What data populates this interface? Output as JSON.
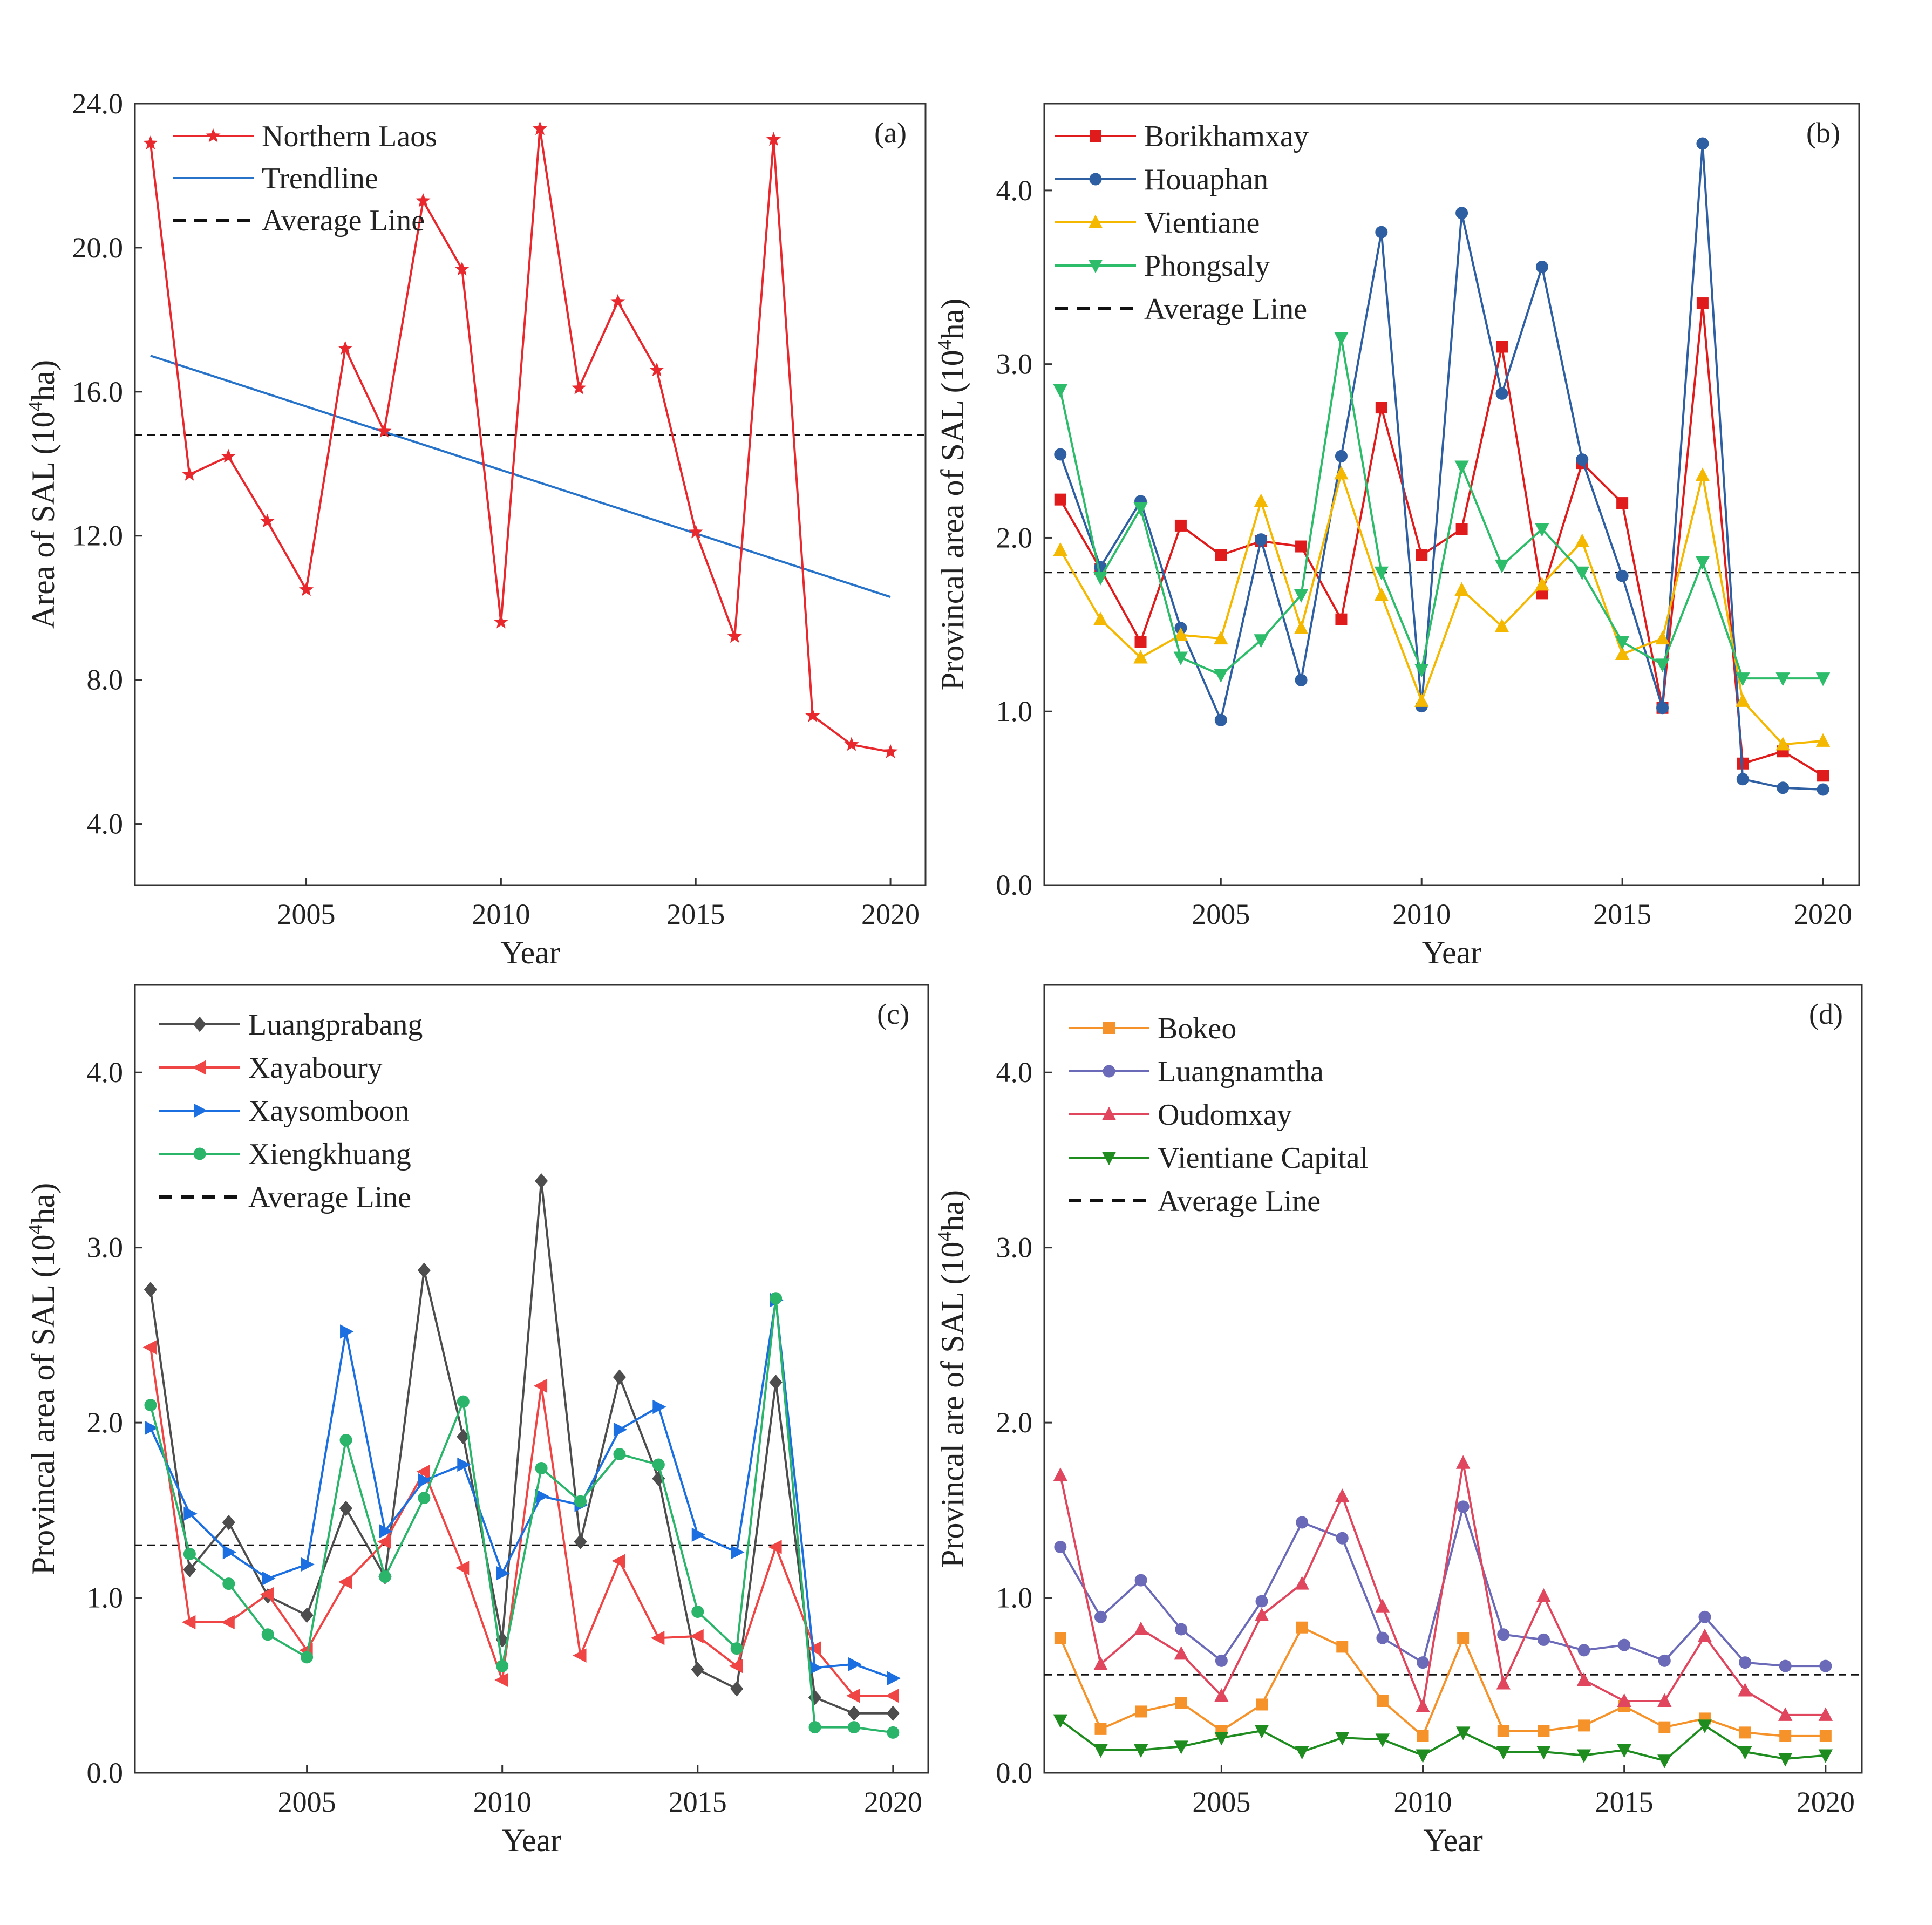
{
  "chart_data": [
    {
      "type": "line",
      "panel_label": "(a)",
      "xlabel": "Year",
      "ylabel": "Area of SAL (10",
      "ylabel_sup": "4",
      "ylabel_suffix": "ha)",
      "xlim": [
        2000.6,
        2020.9
      ],
      "ylim": [
        2.3,
        24.0
      ],
      "xticks": [
        2005,
        2010,
        2015,
        2020
      ],
      "yticks": [
        4.0,
        8.0,
        12.0,
        16.0,
        20.0,
        24.0
      ],
      "x": [
        2001,
        2002,
        2003,
        2004,
        2005,
        2006,
        2007,
        2008,
        2009,
        2010,
        2011,
        2012,
        2013,
        2014,
        2015,
        2016,
        2017,
        2018,
        2019,
        2020
      ],
      "series": [
        {
          "name": "Northern Laos",
          "color": "#e8282d",
          "marker": "star",
          "values": [
            22.9,
            13.7,
            14.2,
            12.4,
            10.5,
            17.2,
            14.9,
            21.3,
            19.4,
            9.6,
            23.3,
            16.1,
            18.5,
            16.6,
            12.1,
            9.2,
            23.0,
            7.0,
            6.2,
            6.0
          ]
        }
      ],
      "trendline": {
        "name": "Trendline",
        "color": "#2673c9",
        "start": [
          2001,
          17.0
        ],
        "end": [
          2020,
          10.3
        ]
      },
      "average": {
        "name": "Average Line",
        "value": 14.8
      }
    },
    {
      "type": "line",
      "panel_label": "(b)",
      "xlabel": "Year",
      "ylabel": "Provincal area of SAL (10",
      "ylabel_sup": "4",
      "ylabel_suffix": "ha)",
      "xlim": [
        2000.6,
        2020.9
      ],
      "ylim": [
        0.0,
        4.5
      ],
      "xticks": [
        2005,
        2010,
        2015,
        2020
      ],
      "yticks": [
        0.0,
        1.0,
        2.0,
        3.0,
        4.0
      ],
      "x": [
        2001,
        2002,
        2003,
        2004,
        2005,
        2006,
        2007,
        2008,
        2009,
        2010,
        2011,
        2012,
        2013,
        2014,
        2015,
        2016,
        2017,
        2018,
        2019,
        2020
      ],
      "series": [
        {
          "name": "Borikhamxay",
          "color": "#e01b1b",
          "marker": "square",
          "values": [
            2.22,
            1.82,
            1.4,
            2.07,
            1.9,
            1.98,
            1.95,
            1.53,
            2.75,
            1.9,
            2.05,
            3.1,
            1.68,
            2.43,
            2.2,
            1.02,
            3.35,
            0.7,
            0.77,
            0.63
          ]
        },
        {
          "name": "Houaphan",
          "color": "#2f5fa3",
          "marker": "circle",
          "values": [
            2.48,
            1.83,
            2.21,
            1.48,
            0.95,
            1.99,
            1.18,
            2.47,
            3.76,
            1.03,
            3.87,
            2.83,
            3.56,
            2.45,
            1.78,
            1.02,
            4.27,
            0.61,
            0.56,
            0.55
          ]
        },
        {
          "name": "Vientiane",
          "color": "#f5b800",
          "marker": "triangle",
          "values": [
            1.93,
            1.53,
            1.31,
            1.44,
            1.42,
            2.21,
            1.48,
            2.37,
            1.67,
            1.06,
            1.7,
            1.49,
            1.73,
            1.98,
            1.33,
            1.42,
            2.36,
            1.06,
            0.81,
            0.83
          ]
        },
        {
          "name": "Phongsaly",
          "color": "#2dbc6a",
          "marker": "triangle-down",
          "values": [
            2.85,
            1.77,
            2.17,
            1.31,
            1.21,
            1.41,
            1.67,
            3.15,
            1.8,
            1.24,
            2.41,
            1.84,
            2.05,
            1.8,
            1.4,
            1.27,
            1.86,
            1.19,
            1.19,
            1.19
          ]
        }
      ],
      "average": {
        "name": "Average Line",
        "value": 1.8
      }
    },
    {
      "type": "line",
      "panel_label": "(c)",
      "xlabel": "Year",
      "ylabel": "Provincal area of SAL (10",
      "ylabel_sup": "4",
      "ylabel_suffix": "ha)",
      "xlim": [
        2000.6,
        2020.9
      ],
      "ylim": [
        0.0,
        4.5
      ],
      "xticks": [
        2005,
        2010,
        2015,
        2020
      ],
      "yticks": [
        0.0,
        1.0,
        2.0,
        3.0,
        4.0
      ],
      "x": [
        2001,
        2002,
        2003,
        2004,
        2005,
        2006,
        2007,
        2008,
        2009,
        2010,
        2011,
        2012,
        2013,
        2014,
        2015,
        2016,
        2017,
        2018,
        2019,
        2020
      ],
      "series": [
        {
          "name": "Luangprabang",
          "color": "#4d4d4d",
          "marker": "diamond",
          "values": [
            2.76,
            1.16,
            1.43,
            1.01,
            0.9,
            1.51,
            1.12,
            2.87,
            1.92,
            0.76,
            3.38,
            1.32,
            2.26,
            1.68,
            0.59,
            0.48,
            2.23,
            0.43,
            0.34,
            0.34
          ]
        },
        {
          "name": "Xayaboury",
          "color": "#f04545",
          "marker": "triangle-left",
          "values": [
            2.43,
            0.86,
            0.86,
            1.02,
            0.7,
            1.09,
            1.32,
            1.72,
            1.17,
            0.53,
            2.21,
            0.67,
            1.21,
            0.77,
            0.78,
            0.61,
            1.29,
            0.71,
            0.44,
            0.44
          ]
        },
        {
          "name": "Xaysomboon",
          "color": "#1c6fe0",
          "marker": "triangle-right",
          "values": [
            1.97,
            1.48,
            1.26,
            1.11,
            1.19,
            2.52,
            1.38,
            1.67,
            1.76,
            1.14,
            1.58,
            1.53,
            1.96,
            2.09,
            1.36,
            1.26,
            2.7,
            0.6,
            0.62,
            0.54
          ]
        },
        {
          "name": "Xiengkhuang",
          "color": "#2bb56b",
          "marker": "circle",
          "values": [
            2.1,
            1.25,
            1.08,
            0.79,
            0.66,
            1.9,
            1.12,
            1.57,
            2.12,
            0.61,
            1.74,
            1.55,
            1.82,
            1.76,
            0.92,
            0.71,
            2.71,
            0.26,
            0.26,
            0.23
          ]
        }
      ],
      "average": {
        "name": "Average Line",
        "value": 1.3
      }
    },
    {
      "type": "line",
      "panel_label": "(d)",
      "xlabel": "Year",
      "ylabel": "Provincal are of SAL (10",
      "ylabel_sup": "4",
      "ylabel_suffix": "ha)",
      "xlim": [
        2000.6,
        2020.9
      ],
      "ylim": [
        0.0,
        4.5
      ],
      "xticks": [
        2005,
        2010,
        2015,
        2020
      ],
      "yticks": [
        0.0,
        1.0,
        2.0,
        3.0,
        4.0
      ],
      "x": [
        2001,
        2002,
        2003,
        2004,
        2005,
        2006,
        2007,
        2008,
        2009,
        2010,
        2011,
        2012,
        2013,
        2014,
        2015,
        2016,
        2017,
        2018,
        2019,
        2020
      ],
      "series": [
        {
          "name": "Bokeo",
          "color": "#f5922a",
          "marker": "square",
          "values": [
            0.77,
            0.25,
            0.35,
            0.4,
            0.24,
            0.39,
            0.83,
            0.72,
            0.41,
            0.21,
            0.77,
            0.24,
            0.24,
            0.27,
            0.38,
            0.26,
            0.31,
            0.23,
            0.21,
            0.21
          ]
        },
        {
          "name": "Luangnamtha",
          "color": "#6a6ab8",
          "marker": "circle",
          "values": [
            1.29,
            0.89,
            1.1,
            0.82,
            0.64,
            0.98,
            1.43,
            1.34,
            0.77,
            0.63,
            1.52,
            0.79,
            0.76,
            0.7,
            0.73,
            0.64,
            0.89,
            0.63,
            0.61,
            0.61
          ]
        },
        {
          "name": "Oudomxay",
          "color": "#e0465d",
          "marker": "triangle",
          "values": [
            1.7,
            0.62,
            0.82,
            0.68,
            0.44,
            0.9,
            1.08,
            1.58,
            0.95,
            0.38,
            1.77,
            0.51,
            1.01,
            0.53,
            0.41,
            0.41,
            0.78,
            0.47,
            0.33,
            0.33
          ]
        },
        {
          "name": "Vientiane Capital",
          "color": "#1f8c1f",
          "marker": "triangle-down",
          "values": [
            0.3,
            0.13,
            0.13,
            0.15,
            0.2,
            0.24,
            0.12,
            0.2,
            0.19,
            0.1,
            0.23,
            0.12,
            0.12,
            0.1,
            0.13,
            0.07,
            0.27,
            0.12,
            0.08,
            0.1
          ]
        }
      ],
      "average": {
        "name": "Average Line",
        "value": 0.56
      }
    }
  ]
}
